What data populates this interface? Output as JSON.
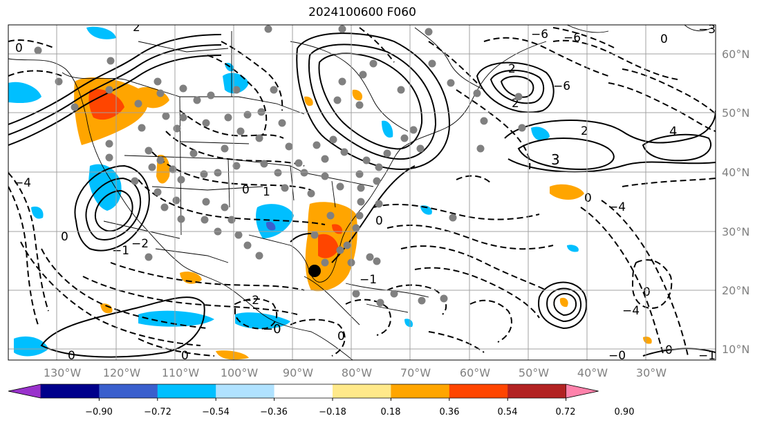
{
  "title": "2024100600 F060",
  "lat_labels": [
    "60°N",
    "50°N",
    "40°N",
    "30°N",
    "20°N",
    "10°N"
  ],
  "lon_labels": [
    "130°W",
    "120°W",
    "110°W",
    "100°W",
    "90°W",
    "80°W",
    "70°W",
    "60°W",
    "50°W",
    "40°W",
    "30°W"
  ],
  "colorbar": {
    "ticks": [
      "−0.90",
      "−0.72",
      "−0.54",
      "−0.36",
      "−0.18",
      "0.18",
      "0.36",
      "0.54",
      "0.72",
      "0.90"
    ],
    "colors": [
      "#9932cc",
      "#00008b",
      "#3a5fcd",
      "#00bfff",
      "#b0e2ff",
      "#ffffff",
      "#ffe98a",
      "#ffa500",
      "#ff4500",
      "#b22222",
      "#ff82ab"
    ]
  },
  "contour_labels": [
    "0",
    "1",
    "2",
    "−1",
    "−2",
    "3",
    "4",
    "−3",
    "−4",
    "−6",
    "−0"
  ],
  "colors": {
    "grid": "#a0a0a0",
    "land": "#000000",
    "contour": "#000000",
    "station": "#808080"
  }
}
